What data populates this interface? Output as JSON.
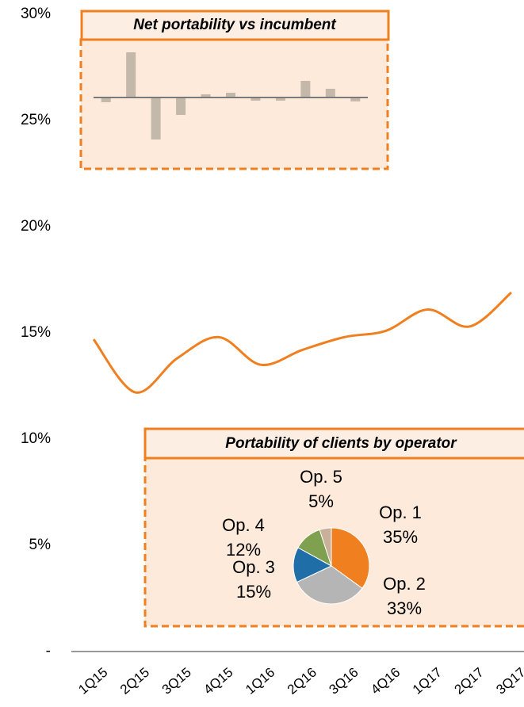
{
  "chart_data": [
    {
      "type": "line",
      "categories": [
        "1Q15",
        "2Q15",
        "3Q15",
        "4Q15",
        "1Q16",
        "2Q16",
        "3Q16",
        "4Q16",
        "1Q17",
        "2Q17",
        "3Q17"
      ],
      "series": [
        {
          "color": "#f07f20",
          "values": [
            14.7,
            12.2,
            13.8,
            14.8,
            13.5,
            14.2,
            14.8,
            15.1,
            16.1,
            15.3,
            16.9
          ]
        }
      ],
      "ylim": [
        0,
        30
      ],
      "yticks": [
        {
          "value": 0,
          "label": "-"
        },
        {
          "value": 5,
          "label": "5%"
        },
        {
          "value": 10,
          "label": "10%"
        },
        {
          "value": 15,
          "label": "15%"
        },
        {
          "value": 20,
          "label": "20%"
        },
        {
          "value": 25,
          "label": "25%"
        },
        {
          "value": 30,
          "label": "30%"
        }
      ]
    },
    {
      "type": "bar",
      "title": "Net portability vs incumbent",
      "color": "#c4b8aa",
      "values": [
        -0.6,
        5.7,
        -5.3,
        -2.2,
        0.4,
        0.6,
        -0.4,
        -0.4,
        2.1,
        1.1,
        -0.5
      ],
      "ylim": [
        -6,
        6
      ]
    },
    {
      "type": "pie",
      "title": "Portability of clients by operator",
      "categories": [
        "Op. 1",
        "Op. 2",
        "Op. 3",
        "Op. 4",
        "Op. 5"
      ],
      "values": [
        35,
        33,
        15,
        12,
        5
      ],
      "value_labels": [
        "35%",
        "33%",
        "15%",
        "12%",
        "5%"
      ],
      "colors": [
        "#f07f20",
        "#b5b5b5",
        "#1f6ea8",
        "#7fa04f",
        "#c8b09a"
      ]
    }
  ]
}
